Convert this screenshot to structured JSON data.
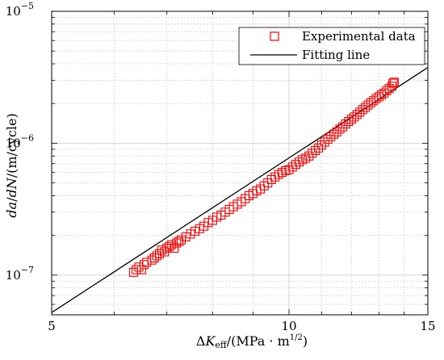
{
  "chart_data": {
    "type": "scatter",
    "x_scale": "log",
    "y_scale": "log",
    "xlim": [
      5,
      15
    ],
    "ylim": [
      5e-08,
      1e-05
    ],
    "grid": true,
    "legend_position": "top-right",
    "x_ticks": [
      {
        "value": 5,
        "label": "5"
      },
      {
        "value": 10,
        "label": "10"
      },
      {
        "value": 15,
        "label": "15"
      }
    ],
    "y_ticks": [
      {
        "value": 1e-07,
        "base": "10",
        "exp": "−7"
      },
      {
        "value": 1e-06,
        "base": "10",
        "exp": "−6"
      },
      {
        "value": 1e-05,
        "base": "10",
        "exp": "−5"
      }
    ],
    "xlabel": {
      "delta": "Δ",
      "symbol": "K",
      "subscript": "eff",
      "units": "/(MPa · m",
      "power": "1/2",
      "close": ")"
    },
    "ylabel": {
      "da": "da",
      "slash": "/",
      "dN": "dN",
      "units": "/(m/cycle)"
    },
    "series": [
      {
        "name": "Experimental data",
        "marker": "square",
        "color": "#ff0000",
        "x": [
          6.35,
          6.4,
          6.45,
          6.5,
          6.55,
          6.6,
          6.7,
          6.75,
          6.8,
          6.85,
          6.9,
          6.95,
          7.0,
          7.05,
          7.1,
          7.15,
          7.2,
          7.25,
          7.3,
          7.4,
          7.5,
          7.6,
          7.7,
          7.8,
          7.9,
          8.0,
          8.1,
          8.2,
          8.3,
          8.4,
          8.5,
          8.6,
          8.7,
          8.8,
          8.9,
          9.0,
          9.1,
          9.2,
          9.3,
          9.4,
          9.5,
          9.6,
          9.7,
          9.8,
          9.9,
          10.0,
          10.1,
          10.2,
          10.3,
          10.4,
          10.5,
          10.6,
          10.7,
          10.8,
          10.9,
          11.0,
          11.1,
          11.2,
          11.3,
          11.4,
          11.5,
          11.6,
          11.7,
          11.8,
          11.9,
          12.0,
          12.1,
          12.2,
          12.3,
          12.4,
          12.5,
          12.6,
          12.7,
          12.8,
          12.9,
          13.0,
          13.1,
          13.2,
          13.3,
          13.4,
          13.5,
          13.55,
          13.6
        ],
        "y": [
          1.05e-07,
          1.1e-07,
          1.15e-07,
          1.1e-07,
          1.2e-07,
          1.25e-07,
          1.3e-07,
          1.35e-07,
          1.4e-07,
          1.45e-07,
          1.55e-07,
          1.5e-07,
          1.6e-07,
          1.65e-07,
          1.7e-07,
          1.6e-07,
          1.75e-07,
          1.8e-07,
          1.85e-07,
          1.95e-07,
          2.05e-07,
          2.15e-07,
          2.25e-07,
          2.35e-07,
          2.5e-07,
          2.6e-07,
          2.75e-07,
          2.85e-07,
          3e-07,
          3.15e-07,
          3.3e-07,
          3.45e-07,
          3.6e-07,
          3.8e-07,
          4e-07,
          4.15e-07,
          4.35e-07,
          4.5e-07,
          4.75e-07,
          5e-07,
          5.3e-07,
          5.55e-07,
          5.8e-07,
          6e-07,
          6.2e-07,
          6.3e-07,
          6.6e-07,
          6.9e-07,
          7.2e-07,
          7.5e-07,
          7.7e-07,
          8e-07,
          8.4e-07,
          8.8e-07,
          9.2e-07,
          9.7e-07,
          1.02e-06,
          1.07e-06,
          1.12e-06,
          1.17e-06,
          1.22e-06,
          1.28e-06,
          1.33e-06,
          1.4e-06,
          1.46e-06,
          1.52e-06,
          1.58e-06,
          1.65e-06,
          1.72e-06,
          1.8e-06,
          1.87e-06,
          1.95e-06,
          2.03e-06,
          2.1e-06,
          2.18e-06,
          2.25e-06,
          2.33e-06,
          2.4e-06,
          2.5e-06,
          2.6e-06,
          2.7e-06,
          2.85e-06,
          2.9e-06
        ]
      },
      {
        "name": "Fitting line",
        "color": "#000000",
        "x": [
          5.0,
          15.0
        ],
        "y": [
          5.2e-08,
          3.75e-06
        ]
      }
    ]
  }
}
